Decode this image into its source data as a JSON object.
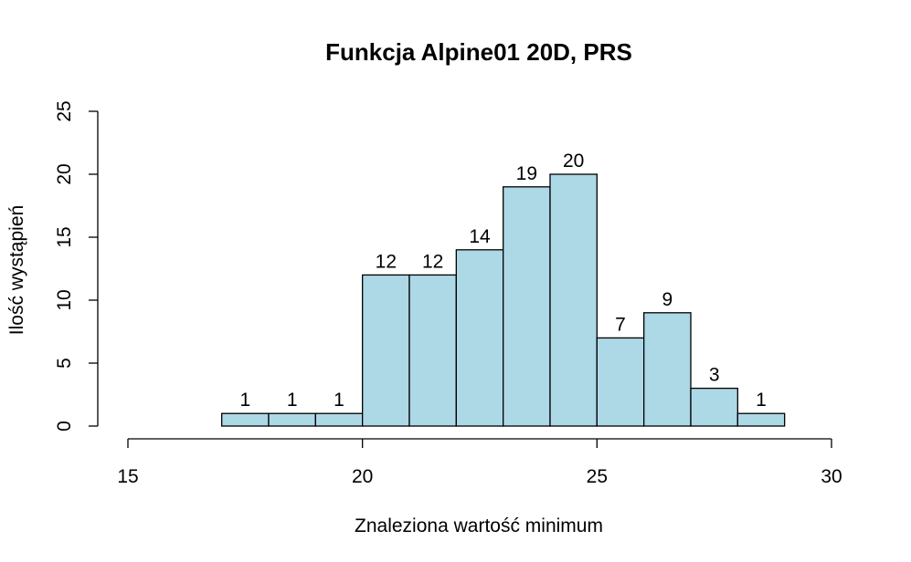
{
  "chart_data": {
    "type": "bar",
    "title": "Funkcja Alpine01 20D, PRS",
    "xlabel": "Znaleziona wartość minimum",
    "ylabel": "Ilość wystąpień",
    "xlim": [
      15,
      30
    ],
    "ylim": [
      0,
      25
    ],
    "x_ticks": [
      "15",
      "20",
      "25",
      "30"
    ],
    "y_ticks": [
      "0",
      "5",
      "10",
      "15",
      "20",
      "25"
    ],
    "bar_color": "#add8e6",
    "bins": [
      {
        "from": 17,
        "to": 18,
        "count": 1
      },
      {
        "from": 18,
        "to": 19,
        "count": 1
      },
      {
        "from": 19,
        "to": 20,
        "count": 1
      },
      {
        "from": 20,
        "to": 21,
        "count": 12
      },
      {
        "from": 21,
        "to": 22,
        "count": 12
      },
      {
        "from": 22,
        "to": 23,
        "count": 14
      },
      {
        "from": 23,
        "to": 24,
        "count": 19
      },
      {
        "from": 24,
        "to": 25,
        "count": 20
      },
      {
        "from": 25,
        "to": 26,
        "count": 7
      },
      {
        "from": 26,
        "to": 27,
        "count": 9
      },
      {
        "from": 27,
        "to": 28,
        "count": 3
      },
      {
        "from": 28,
        "to": 29,
        "count": 1
      }
    ]
  }
}
